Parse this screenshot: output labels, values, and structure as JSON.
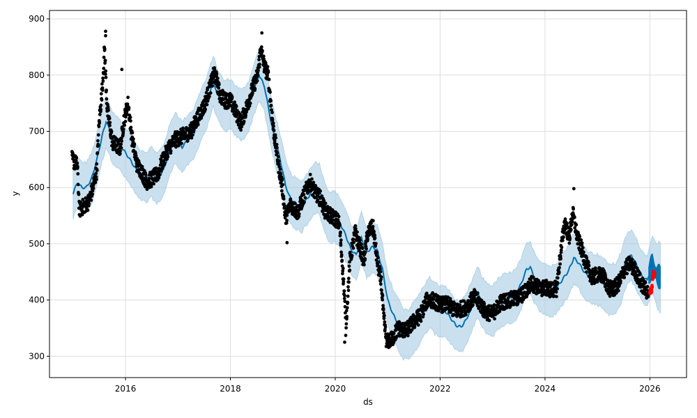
{
  "chart_data": {
    "type": "scatter",
    "xlabel": "ds",
    "ylabel": "y",
    "xlim": [
      2014.55,
      2026.7
    ],
    "ylim": [
      262,
      915
    ],
    "x_ticks": [
      2016,
      2018,
      2020,
      2022,
      2024,
      2026
    ],
    "x_tick_labels": [
      "2016",
      "2018",
      "2020",
      "2022",
      "2024",
      "2026"
    ],
    "y_ticks": [
      300,
      400,
      500,
      600,
      700,
      800,
      900
    ],
    "y_tick_labels": [
      "300",
      "400",
      "500",
      "600",
      "700",
      "800",
      "900"
    ],
    "grid": true,
    "legend": "none",
    "colors": {
      "observed": "#000000",
      "forecast": "#0072B2",
      "interval": "#a6cce3",
      "actual_future": "#ff0000",
      "grid": "#dddddd"
    },
    "series": [
      {
        "kind": "forecast_line",
        "points": [
          [
            2015.0,
            590
          ],
          [
            2015.08,
            608
          ],
          [
            2015.17,
            600
          ],
          [
            2015.25,
            600
          ],
          [
            2015.35,
            615
          ],
          [
            2015.45,
            648
          ],
          [
            2015.55,
            690
          ],
          [
            2015.63,
            718
          ],
          [
            2015.75,
            690
          ],
          [
            2015.9,
            675
          ],
          [
            2016.05,
            655
          ],
          [
            2016.15,
            640
          ],
          [
            2016.25,
            625
          ],
          [
            2016.4,
            618
          ],
          [
            2016.5,
            628
          ],
          [
            2016.6,
            615
          ],
          [
            2016.72,
            630
          ],
          [
            2016.85,
            668
          ],
          [
            2016.95,
            690
          ],
          [
            2017.08,
            672
          ],
          [
            2017.2,
            686
          ],
          [
            2017.3,
            695
          ],
          [
            2017.45,
            732
          ],
          [
            2017.55,
            750
          ],
          [
            2017.67,
            790
          ],
          [
            2017.78,
            760
          ],
          [
            2017.88,
            745
          ],
          [
            2018.0,
            748
          ],
          [
            2018.12,
            735
          ],
          [
            2018.22,
            728
          ],
          [
            2018.35,
            745
          ],
          [
            2018.45,
            775
          ],
          [
            2018.55,
            800
          ],
          [
            2018.65,
            780
          ],
          [
            2018.8,
            705
          ],
          [
            2018.95,
            650
          ],
          [
            2019.05,
            605
          ],
          [
            2019.12,
            585
          ],
          [
            2019.2,
            575
          ],
          [
            2019.35,
            565
          ],
          [
            2019.5,
            585
          ],
          [
            2019.6,
            600
          ],
          [
            2019.7,
            598
          ],
          [
            2019.78,
            570
          ],
          [
            2019.88,
            548
          ],
          [
            2020.0,
            548
          ],
          [
            2020.1,
            535
          ],
          [
            2020.2,
            515
          ],
          [
            2020.3,
            490
          ],
          [
            2020.4,
            480
          ],
          [
            2020.5,
            510
          ],
          [
            2020.6,
            485
          ],
          [
            2020.72,
            495
          ],
          [
            2020.8,
            488
          ],
          [
            2020.9,
            455
          ],
          [
            2021.0,
            400
          ],
          [
            2021.1,
            375
          ],
          [
            2021.2,
            358
          ],
          [
            2021.3,
            340
          ],
          [
            2021.4,
            338
          ],
          [
            2021.5,
            352
          ],
          [
            2021.6,
            365
          ],
          [
            2021.72,
            385
          ],
          [
            2021.8,
            395
          ],
          [
            2021.9,
            385
          ],
          [
            2022.0,
            380
          ],
          [
            2022.1,
            380
          ],
          [
            2022.2,
            368
          ],
          [
            2022.3,
            355
          ],
          [
            2022.4,
            352
          ],
          [
            2022.5,
            365
          ],
          [
            2022.6,
            388
          ],
          [
            2022.72,
            415
          ],
          [
            2022.8,
            395
          ],
          [
            2022.9,
            385
          ],
          [
            2023.0,
            380
          ],
          [
            2023.1,
            392
          ],
          [
            2023.2,
            400
          ],
          [
            2023.3,
            402
          ],
          [
            2023.45,
            410
          ],
          [
            2023.55,
            430
          ],
          [
            2023.65,
            455
          ],
          [
            2023.72,
            458
          ],
          [
            2023.8,
            440
          ],
          [
            2023.9,
            425
          ],
          [
            2024.0,
            420
          ],
          [
            2024.1,
            415
          ],
          [
            2024.2,
            418
          ],
          [
            2024.3,
            432
          ],
          [
            2024.45,
            452
          ],
          [
            2024.55,
            475
          ],
          [
            2024.65,
            465
          ],
          [
            2024.75,
            450
          ],
          [
            2024.85,
            440
          ],
          [
            2024.95,
            437
          ],
          [
            2025.05,
            435
          ],
          [
            2025.15,
            425
          ],
          [
            2025.25,
            418
          ],
          [
            2025.35,
            420
          ],
          [
            2025.45,
            440
          ],
          [
            2025.55,
            470
          ],
          [
            2025.65,
            480
          ],
          [
            2025.75,
            462
          ],
          [
            2025.85,
            442
          ],
          [
            2025.95,
            435
          ],
          [
            2026.05,
            465
          ],
          [
            2026.13,
            445
          ],
          [
            2026.2,
            440
          ]
        ]
      },
      {
        "kind": "uncertainty_band",
        "half_width": 45
      },
      {
        "kind": "observed_points",
        "anchors": [
          [
            2014.98,
            650
          ],
          [
            2015.08,
            640
          ],
          [
            2015.12,
            560
          ],
          [
            2015.3,
            575
          ],
          [
            2015.38,
            600
          ],
          [
            2015.45,
            630
          ],
          [
            2015.5,
            720
          ],
          [
            2015.56,
            780
          ],
          [
            2015.6,
            850
          ],
          [
            2015.65,
            740
          ],
          [
            2015.75,
            680
          ],
          [
            2015.9,
            670
          ],
          [
            2015.97,
            720
          ],
          [
            2016.05,
            750
          ],
          [
            2016.12,
            690
          ],
          [
            2016.22,
            640
          ],
          [
            2016.3,
            630
          ],
          [
            2016.4,
            610
          ],
          [
            2016.5,
            615
          ],
          [
            2016.62,
            625
          ],
          [
            2016.72,
            650
          ],
          [
            2016.82,
            670
          ],
          [
            2016.95,
            685
          ],
          [
            2017.1,
            692
          ],
          [
            2017.25,
            700
          ],
          [
            2017.38,
            725
          ],
          [
            2017.5,
            745
          ],
          [
            2017.6,
            775
          ],
          [
            2017.7,
            805
          ],
          [
            2017.8,
            765
          ],
          [
            2017.9,
            755
          ],
          [
            2018.0,
            755
          ],
          [
            2018.1,
            735
          ],
          [
            2018.2,
            715
          ],
          [
            2018.32,
            745
          ],
          [
            2018.42,
            775
          ],
          [
            2018.52,
            800
          ],
          [
            2018.58,
            848
          ],
          [
            2018.65,
            815
          ],
          [
            2018.72,
            800
          ],
          [
            2018.82,
            705
          ],
          [
            2018.92,
            640
          ],
          [
            2019.0,
            595
          ],
          [
            2019.05,
            545
          ],
          [
            2019.15,
            570
          ],
          [
            2019.28,
            555
          ],
          [
            2019.42,
            590
          ],
          [
            2019.52,
            610
          ],
          [
            2019.62,
            590
          ],
          [
            2019.72,
            580
          ],
          [
            2019.8,
            560
          ],
          [
            2019.9,
            550
          ],
          [
            2020.0,
            545
          ],
          [
            2020.08,
            535
          ],
          [
            2020.15,
            445
          ],
          [
            2020.18,
            400
          ],
          [
            2020.2,
            350
          ],
          [
            2020.28,
            470
          ],
          [
            2020.38,
            520
          ],
          [
            2020.45,
            500
          ],
          [
            2020.55,
            470
          ],
          [
            2020.62,
            520
          ],
          [
            2020.72,
            530
          ],
          [
            2020.8,
            470
          ],
          [
            2020.88,
            430
          ],
          [
            2020.92,
            370
          ],
          [
            2020.98,
            325
          ],
          [
            2021.08,
            330
          ],
          [
            2021.2,
            350
          ],
          [
            2021.35,
            345
          ],
          [
            2021.5,
            362
          ],
          [
            2021.62,
            372
          ],
          [
            2021.75,
            400
          ],
          [
            2021.85,
            400
          ],
          [
            2022.0,
            392
          ],
          [
            2022.15,
            392
          ],
          [
            2022.3,
            380
          ],
          [
            2022.5,
            388
          ],
          [
            2022.65,
            405
          ],
          [
            2022.75,
            395
          ],
          [
            2022.85,
            380
          ],
          [
            2023.0,
            375
          ],
          [
            2023.15,
            395
          ],
          [
            2023.3,
            400
          ],
          [
            2023.45,
            402
          ],
          [
            2023.6,
            412
          ],
          [
            2023.75,
            430
          ],
          [
            2023.9,
            420
          ],
          [
            2024.0,
            422
          ],
          [
            2024.12,
            418
          ],
          [
            2024.22,
            420
          ],
          [
            2024.3,
            485
          ],
          [
            2024.38,
            540
          ],
          [
            2024.46,
            510
          ],
          [
            2024.53,
            555
          ],
          [
            2024.62,
            510
          ],
          [
            2024.7,
            490
          ],
          [
            2024.8,
            460
          ],
          [
            2024.9,
            440
          ],
          [
            2025.0,
            445
          ],
          [
            2025.12,
            442
          ],
          [
            2025.22,
            420
          ],
          [
            2025.32,
            420
          ],
          [
            2025.42,
            432
          ],
          [
            2025.52,
            455
          ],
          [
            2025.62,
            465
          ],
          [
            2025.72,
            452
          ],
          [
            2025.82,
            432
          ],
          [
            2025.92,
            418
          ],
          [
            2025.98,
            412
          ]
        ]
      },
      {
        "kind": "actual_future_points",
        "points": [
          [
            2026.0,
            412
          ],
          [
            2026.01,
            418
          ],
          [
            2026.02,
            421
          ],
          [
            2026.03,
            416
          ],
          [
            2026.04,
            425
          ],
          [
            2026.05,
            438
          ],
          [
            2026.06,
            445
          ],
          [
            2026.07,
            449
          ],
          [
            2026.08,
            440
          ],
          [
            2026.09,
            446
          ]
        ]
      }
    ]
  }
}
